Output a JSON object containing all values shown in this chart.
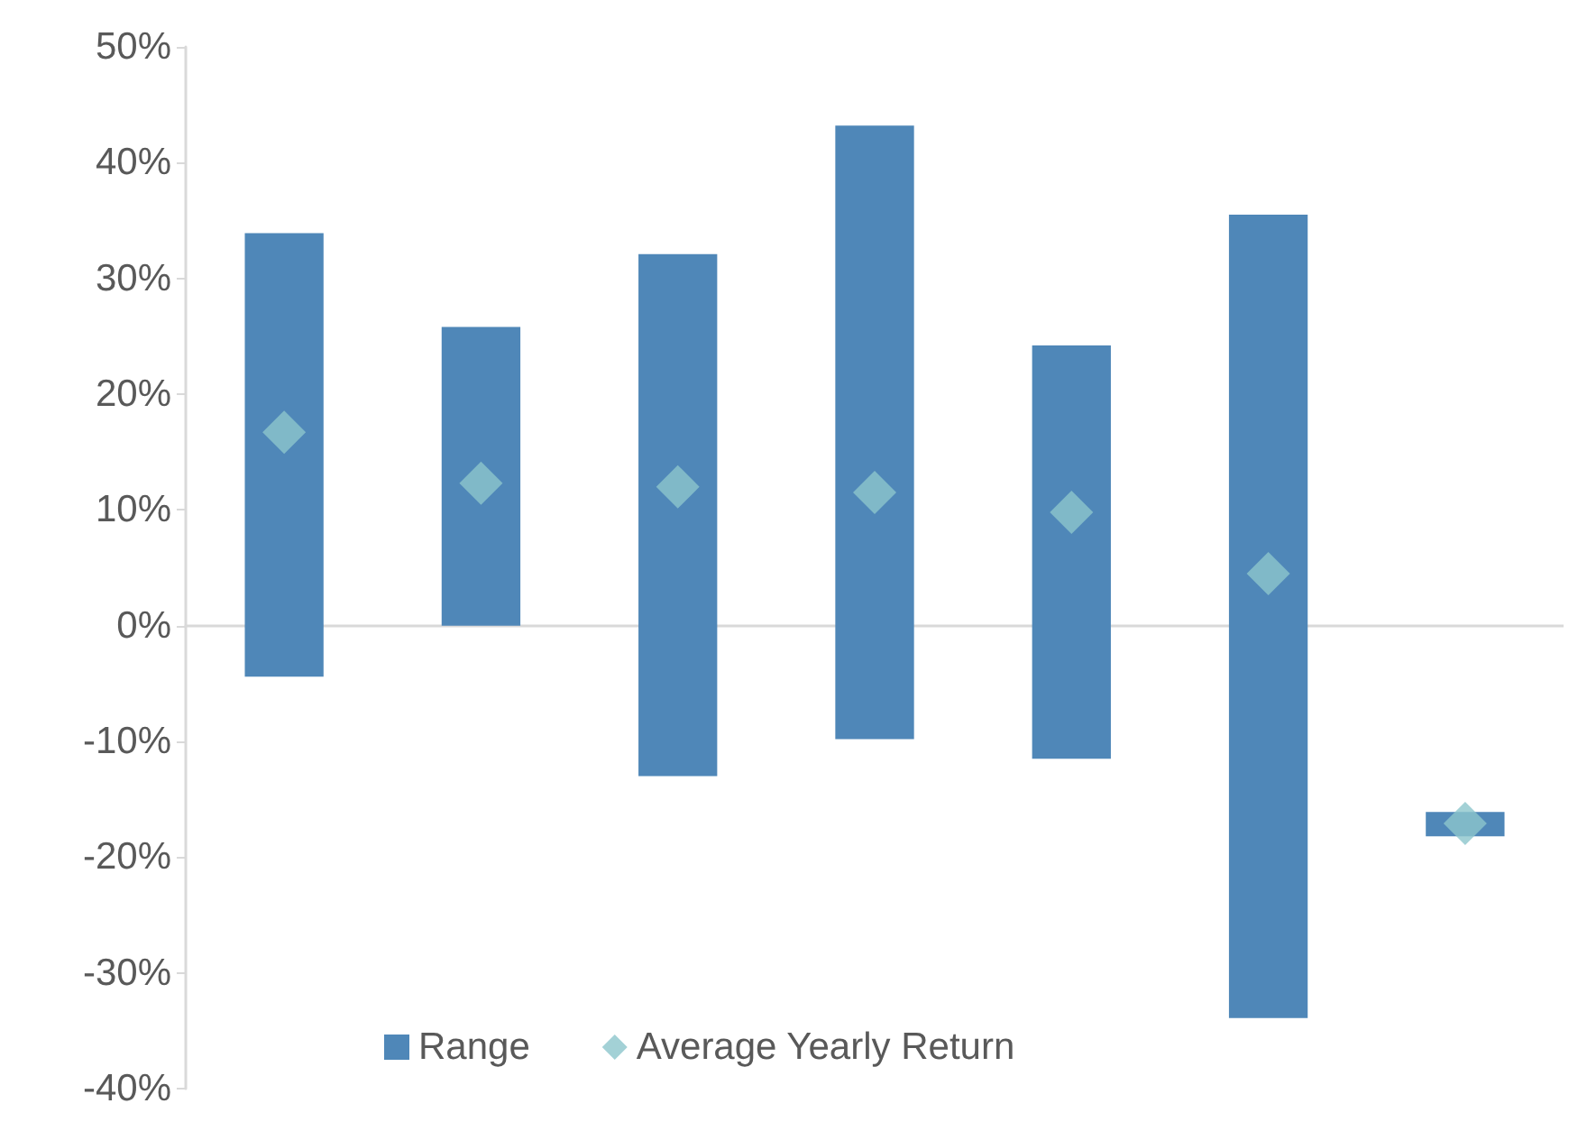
{
  "chart_data": {
    "type": "bar",
    "categories": [
      null,
      null,
      null,
      null,
      null,
      null,
      null
    ],
    "series": [
      {
        "name": "Range",
        "type": "bar",
        "color": "#4f87b8",
        "base": [
          -4.4,
          0,
          -13,
          -9.8,
          -11.5,
          -33.9,
          -18.2
        ],
        "values": [
          38.3,
          25.8,
          45.1,
          53,
          35.7,
          69.4,
          2.1
        ]
      },
      {
        "name": "Average Yearly Return",
        "type": "scatter",
        "color": "#8cc5cc",
        "marker": "diamond",
        "values": [
          16.7,
          12.3,
          12,
          11.5,
          9.8,
          4.5,
          -17.1
        ]
      }
    ],
    "ylim": [
      -40,
      50
    ],
    "yticks": [
      {
        "value": -40,
        "label": "-40%"
      },
      {
        "value": -30,
        "label": "-30%"
      },
      {
        "value": -20,
        "label": "-20%"
      },
      {
        "value": -10,
        "label": "-10%"
      },
      {
        "value": 0,
        "label": "0%"
      },
      {
        "value": 10,
        "label": "10%"
      },
      {
        "value": 20,
        "label": "20%"
      },
      {
        "value": 30,
        "label": "30%"
      },
      {
        "value": 40,
        "label": "40%"
      },
      {
        "value": 50,
        "label": "50%"
      }
    ],
    "tick_labels": "y",
    "legend": "bottom"
  }
}
